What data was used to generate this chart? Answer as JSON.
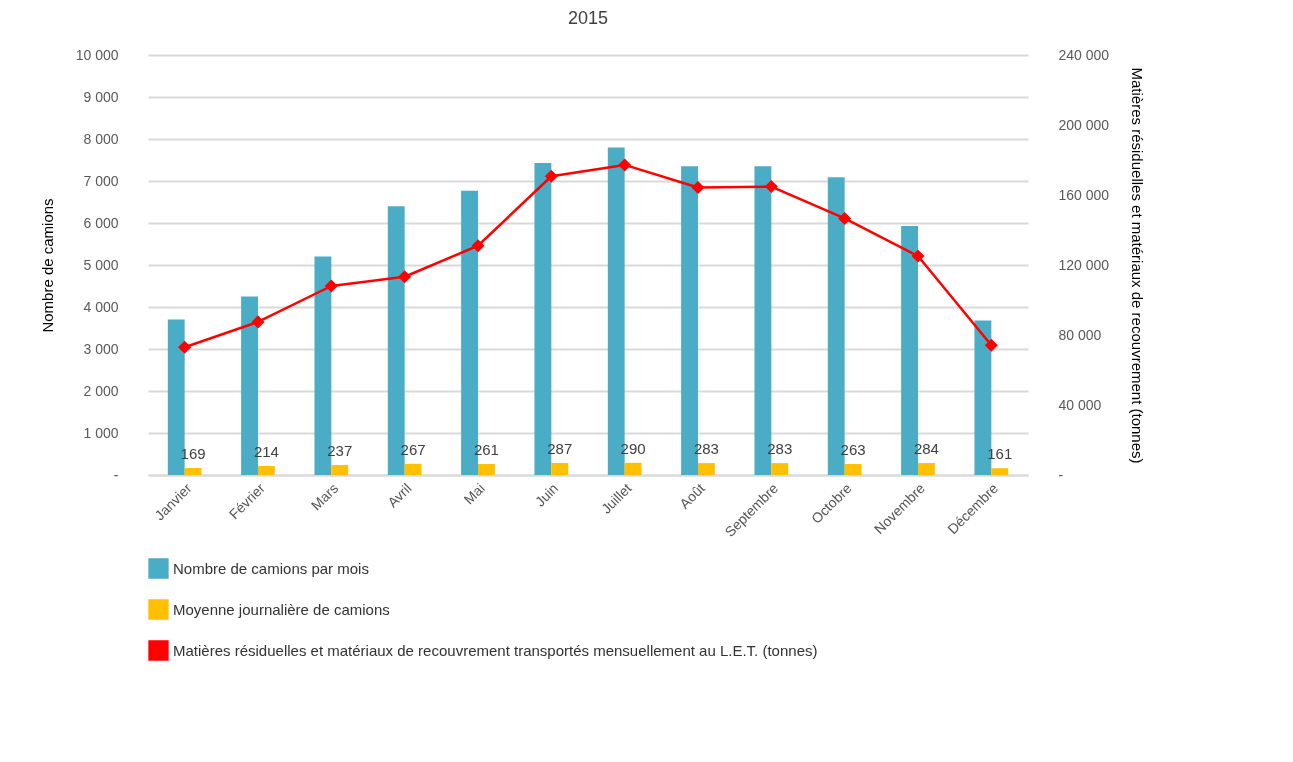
{
  "chart_data": {
    "type": "bar",
    "title": "2015",
    "categories": [
      "Janvier",
      "Février",
      "Mars",
      "Avril",
      "Mai",
      "Juin",
      "Juillet",
      "Août",
      "Septembre",
      "Octobre",
      "Novembre",
      "Décembre"
    ],
    "series": [
      {
        "name": "Nombre de camions par mois",
        "color": "#4bacc6",
        "values": [
          3700,
          4250,
          5200,
          6400,
          6770,
          7430,
          7800,
          7350,
          7350,
          7090,
          5930,
          3680
        ]
      },
      {
        "name": "Moyenne journalière de camions",
        "color": "#ffc000",
        "values": [
          169,
          214,
          237,
          267,
          261,
          287,
          290,
          283,
          283,
          263,
          284,
          161
        ],
        "value_labels": [
          "169",
          "214",
          "237",
          "267",
          "261",
          "287",
          "290",
          "283",
          "283",
          "263",
          "284",
          "161"
        ]
      },
      {
        "name": "Matières résiduelles et matériaux de recouvrement transportés mensuellement au L.E.T. (tonnes)",
        "type": "line",
        "axis": "y2",
        "color": "#ff0000",
        "marker": "diamond",
        "values": [
          73000,
          87500,
          108000,
          113300,
          131000,
          170700,
          177200,
          164300,
          164800,
          146600,
          125100,
          74100
        ]
      }
    ],
    "ylabel": "Nombre de camions",
    "y2label": "Matières résiduelles et matériaux de recouvrement (tonnes)",
    "ylim": [
      0,
      10000
    ],
    "yticks": [
      {
        "value": 0,
        "label": "-"
      },
      {
        "value": 1000,
        "label": "1 000"
      },
      {
        "value": 2000,
        "label": "2 000"
      },
      {
        "value": 3000,
        "label": "3 000"
      },
      {
        "value": 4000,
        "label": "4 000"
      },
      {
        "value": 5000,
        "label": "5 000"
      },
      {
        "value": 6000,
        "label": "6 000"
      },
      {
        "value": 7000,
        "label": "7 000"
      },
      {
        "value": 8000,
        "label": "8 000"
      },
      {
        "value": 9000,
        "label": "9 000"
      },
      {
        "value": 10000,
        "label": "10 000"
      }
    ],
    "y2lim": [
      0,
      240000
    ],
    "y2ticks": [
      {
        "value": 0,
        "label": "-"
      },
      {
        "value": 40000,
        "label": "40 000"
      },
      {
        "value": 80000,
        "label": "80 000"
      },
      {
        "value": 120000,
        "label": "120 000"
      },
      {
        "value": 160000,
        "label": "160 000"
      },
      {
        "value": 200000,
        "label": "200 000"
      },
      {
        "value": 240000,
        "label": "240 000"
      }
    ],
    "grid": "y",
    "legend": "bottom"
  }
}
